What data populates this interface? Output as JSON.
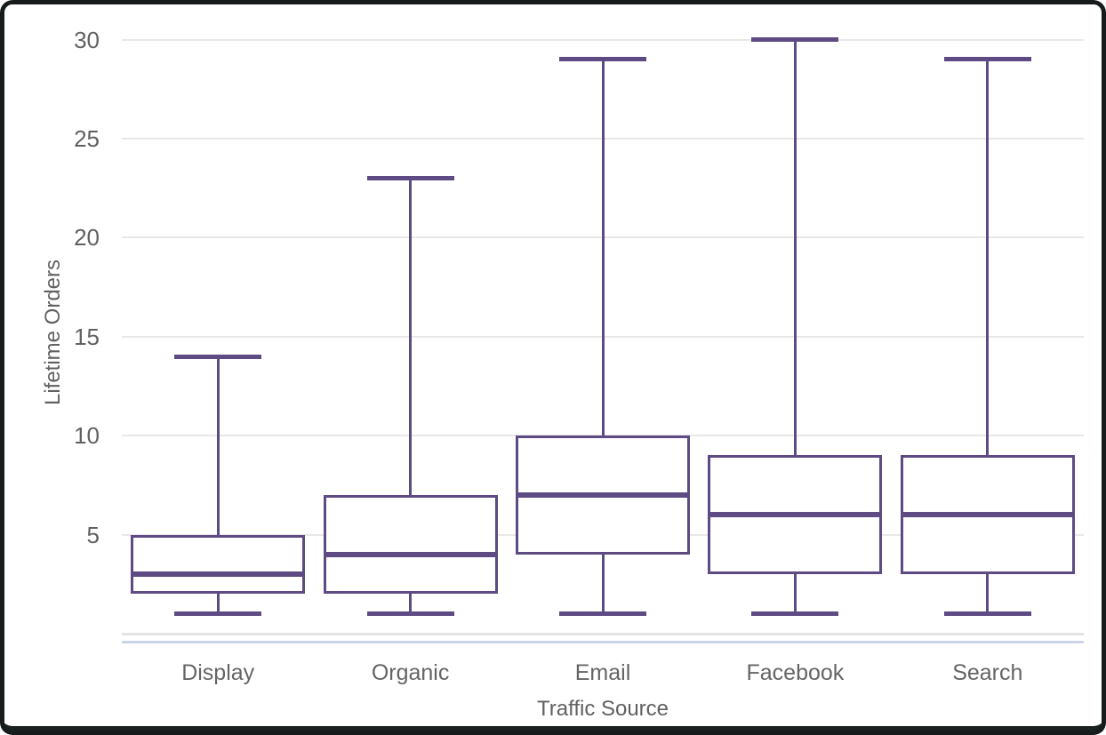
{
  "chart_data": {
    "type": "boxplot",
    "title": "",
    "xlabel": "Traffic Source",
    "ylabel": "Lifetime Orders",
    "ylim": [
      0,
      30
    ],
    "yticks": [
      5,
      10,
      15,
      20,
      25,
      30
    ],
    "grid": true,
    "legend": false,
    "categories": [
      "Display",
      "Organic",
      "Email",
      "Facebook",
      "Search"
    ],
    "series": [
      {
        "category": "Display",
        "min": 1,
        "q1": 2,
        "median": 3,
        "q3": 5,
        "max": 14
      },
      {
        "category": "Organic",
        "min": 1,
        "q1": 2,
        "median": 4,
        "q3": 7,
        "max": 23
      },
      {
        "category": "Email",
        "min": 1,
        "q1": 4,
        "median": 7,
        "q3": 10,
        "max": 29
      },
      {
        "category": "Facebook",
        "min": 1,
        "q1": 3,
        "median": 6,
        "q3": 9,
        "max": 30
      },
      {
        "category": "Search",
        "min": 1,
        "q1": 3,
        "median": 6,
        "q3": 9,
        "max": 29
      }
    ]
  },
  "colors": {
    "box_stroke": "#5e4b84",
    "gridline": "#e8e8e8",
    "zero_line": "#e3e3e3",
    "axis_line": "#ccd5e8",
    "label_text": "#616161",
    "background": "#ffffff",
    "frame_border": "#171b1b"
  }
}
